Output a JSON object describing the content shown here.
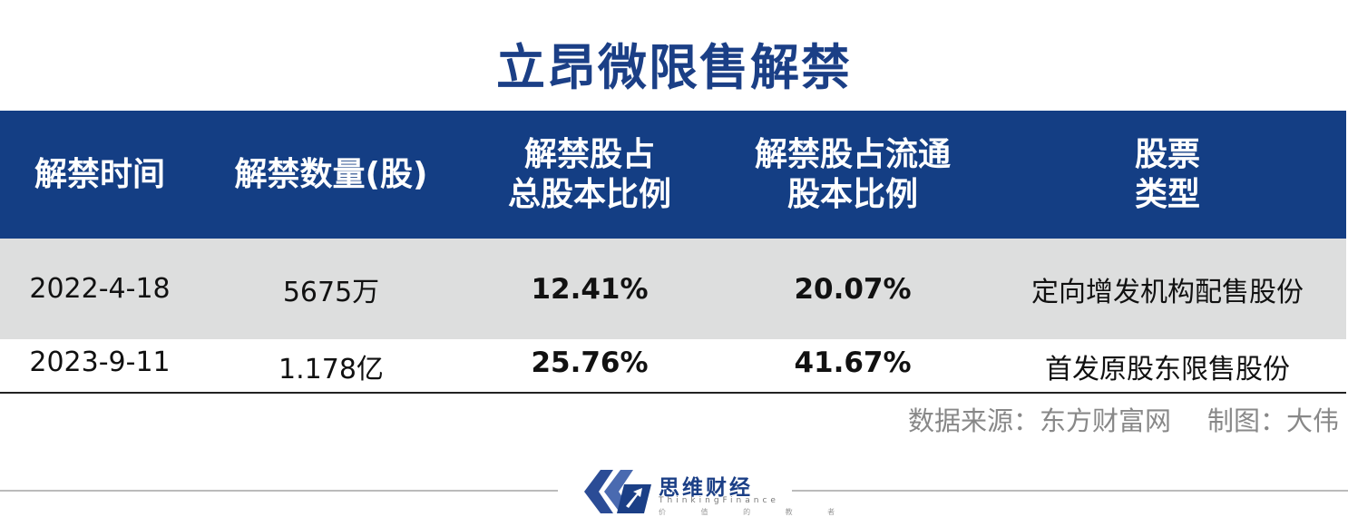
{
  "title": "立昂微限售解禁",
  "table": {
    "headers": [
      [
        "解禁时间"
      ],
      [
        "解禁数量(股)"
      ],
      [
        "解禁股占",
        "总股本比例"
      ],
      [
        "解禁股占流通",
        "股本比例"
      ],
      [
        "股票",
        "类型"
      ]
    ],
    "rows": [
      [
        "2022-4-18",
        "5675万",
        "12.41%",
        "20.07%",
        "定向增发机构配售股份"
      ],
      [
        "2023-9-11",
        "1.178亿",
        "25.76%",
        "41.67%",
        "首发原股东限售股份"
      ]
    ]
  },
  "footer": {
    "source": "数据来源：东方财富网",
    "author": "制图：大伟"
  },
  "logo": {
    "name": "思维财经",
    "english": "ThinkingFinance",
    "tagline": "价 值 的 教 者"
  },
  "colors": {
    "title": "#1b3f86",
    "header_bg": "#143e84",
    "row_shade": "#dddede"
  }
}
